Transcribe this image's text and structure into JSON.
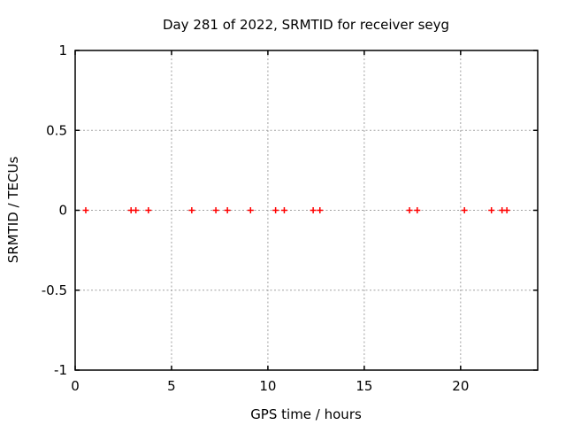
{
  "chart_data": {
    "type": "scatter",
    "title": "Day 281 of 2022, SRMTID for receiver seyg",
    "xlabel": "GPS time / hours",
    "ylabel": "SRMTID / TECUs",
    "xlim": [
      0,
      24
    ],
    "ylim": [
      -1,
      1
    ],
    "x_ticks": {
      "values": [
        0,
        5,
        10,
        15,
        20
      ],
      "labels": [
        "0",
        "5",
        "10",
        "15",
        "20"
      ]
    },
    "y_ticks": {
      "values": [
        1,
        0.5,
        0,
        -0.5,
        -1
      ],
      "labels": [
        "1",
        "0.5",
        "0",
        "-0.5",
        "-1"
      ]
    },
    "grid": {
      "enabled": true,
      "style": "dashed",
      "color": "#a0a0a0"
    },
    "tick_direction": "in",
    "border": true,
    "legend": "none",
    "series": [
      {
        "name": "SRMTID",
        "marker": "plus",
        "color": "#ff0000",
        "x": [
          0.55,
          2.9,
          3.15,
          3.8,
          6.05,
          7.3,
          7.9,
          9.1,
          10.4,
          10.85,
          12.35,
          12.7,
          17.35,
          17.75,
          20.2,
          21.6,
          22.15,
          22.4
        ],
        "y": [
          0,
          0,
          0,
          0,
          0,
          0,
          0,
          0,
          0,
          0,
          0,
          0,
          0,
          0,
          0,
          0,
          0,
          0
        ]
      }
    ],
    "colors": {
      "background": "#ffffff",
      "axis": "#000000",
      "text": "#000000",
      "grid": "#a0a0a0",
      "marker": "#ff0000"
    }
  }
}
